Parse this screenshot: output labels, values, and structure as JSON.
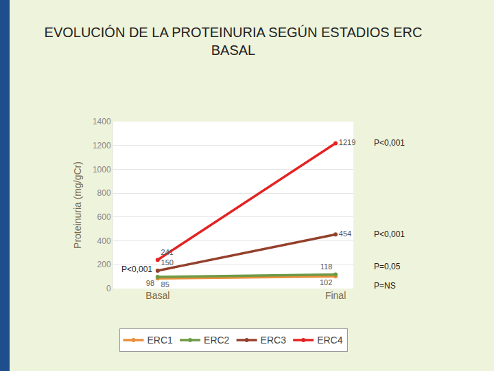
{
  "chart_data": {
    "type": "line",
    "title": "EVOLUCIÓN DE LA PROTEINURIA SEGÚN ESTADIOS ERC BASAL",
    "y_label": "Proteinuria (mg/gCr)",
    "categories": [
      "Basal",
      "Final"
    ],
    "series": [
      {
        "name": "ERC1",
        "color": "#e8903c",
        "values": [
          85,
          102
        ]
      },
      {
        "name": "ERC2",
        "color": "#6e9a46",
        "values": [
          98,
          118
        ]
      },
      {
        "name": "ERC3",
        "color": "#94402c",
        "values": [
          150,
          454
        ]
      },
      {
        "name": "ERC4",
        "color": "#e42222",
        "values": [
          241,
          1219
        ]
      }
    ],
    "ylim": [
      0,
      1400
    ],
    "yticks": [
      0,
      200,
      400,
      600,
      800,
      1000,
      1200,
      1400
    ],
    "grid": true,
    "legend": "bottom",
    "data_labels": true,
    "marker": "circle",
    "annotations": [
      {
        "text": "P<0,001",
        "series": "ERC4",
        "category": "Final"
      },
      {
        "text": "P<0,001",
        "series": "ERC3",
        "category": "Final"
      },
      {
        "text": "P=0,05",
        "series": "ERC2",
        "category": "Final"
      },
      {
        "text": "P=NS",
        "series": "ERC1",
        "category": "Final"
      },
      {
        "text": "P<0,001",
        "series": "ERC4",
        "category": "Basal"
      }
    ]
  }
}
